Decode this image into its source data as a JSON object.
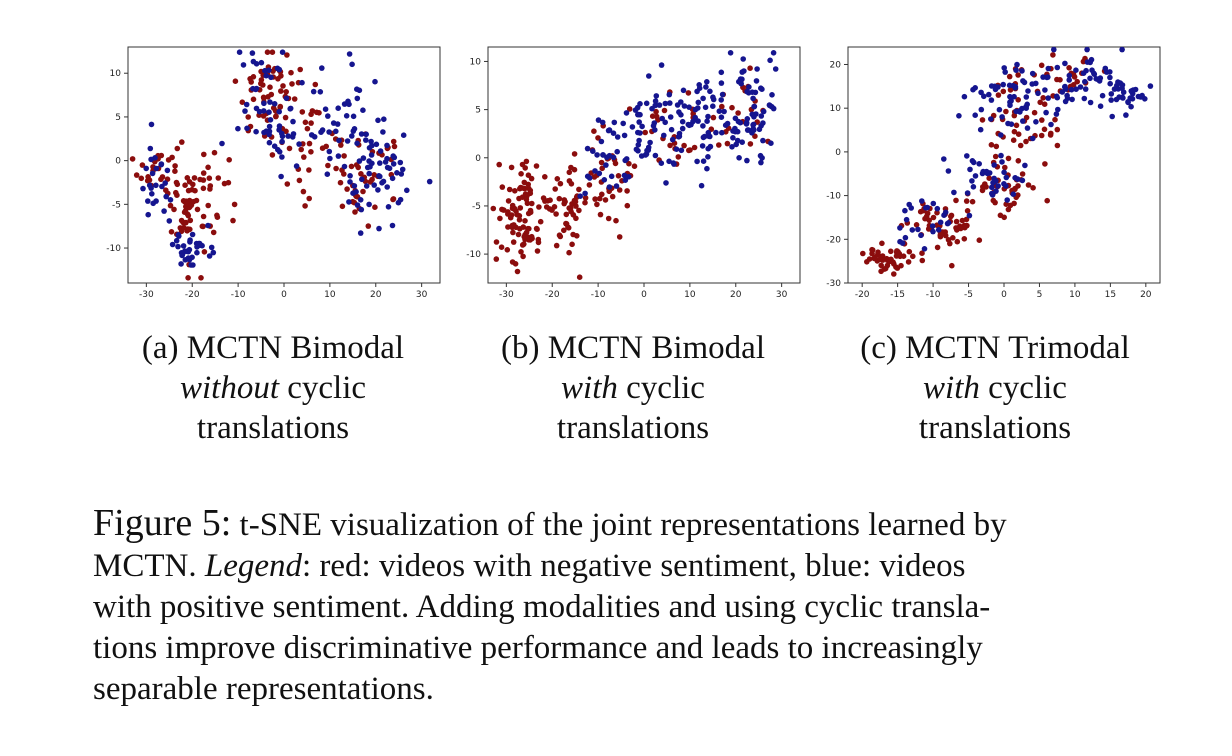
{
  "colors": {
    "negative": "#8b0d0d",
    "positive": "#15158f"
  },
  "chart_data": [
    {
      "type": "scatter",
      "xlim": [
        -34,
        34
      ],
      "ylim": [
        -14,
        13
      ],
      "xticks": [
        "-30",
        "-20",
        "-10",
        "0",
        "10",
        "20",
        "30"
      ],
      "yticks": [
        "10",
        "5",
        "0",
        "-5",
        "-10"
      ],
      "xtick_values": [
        -30,
        -20,
        -10,
        0,
        10,
        20,
        30
      ],
      "ytick_values": [
        10,
        5,
        0,
        -5,
        -10
      ],
      "series": [
        {
          "color": "#8b0d0d",
          "clusters": [
            {
              "cx": -27,
              "cy": -1,
              "sx": 3,
              "sy": 2.5,
              "n": 30
            },
            {
              "cx": -21,
              "cy": -6,
              "sx": 2.5,
              "sy": 3.5,
              "n": 40
            },
            {
              "cx": -17,
              "cy": -3,
              "sx": 3,
              "sy": 3,
              "n": 30
            },
            {
              "cx": -4,
              "cy": 8,
              "sx": 4,
              "sy": 3,
              "n": 50
            },
            {
              "cx": 4,
              "cy": 3,
              "sx": 5,
              "sy": 4,
              "n": 40
            },
            {
              "cx": 18,
              "cy": -2,
              "sx": 6,
              "sy": 3,
              "n": 45
            }
          ]
        },
        {
          "color": "#15158f",
          "clusters": [
            {
              "cx": -28,
              "cy": -3,
              "sx": 2,
              "sy": 3,
              "n": 25
            },
            {
              "cx": -20,
              "cy": -10,
              "sx": 2.5,
              "sy": 1.5,
              "n": 35
            },
            {
              "cx": -2,
              "cy": 6,
              "sx": 5,
              "sy": 4,
              "n": 60
            },
            {
              "cx": 13,
              "cy": 4,
              "sx": 5,
              "sy": 4,
              "n": 40
            },
            {
              "cx": 21,
              "cy": -2,
              "sx": 5,
              "sy": 3.5,
              "n": 55
            }
          ]
        }
      ]
    },
    {
      "type": "scatter",
      "xlim": [
        -34,
        34
      ],
      "ylim": [
        -13,
        11.5
      ],
      "xticks": [
        "-30",
        "-20",
        "-10",
        "0",
        "10",
        "20",
        "30"
      ],
      "yticks": [
        "10",
        "5",
        "0",
        "-5",
        "-10"
      ],
      "xtick_values": [
        -30,
        -20,
        -10,
        0,
        10,
        20,
        30
      ],
      "ytick_values": [
        10,
        5,
        0,
        -5,
        -10
      ],
      "series": [
        {
          "color": "#8b0d0d",
          "clusters": [
            {
              "cx": -27,
              "cy": -6,
              "sx": 3,
              "sy": 3,
              "n": 80
            },
            {
              "cx": -18,
              "cy": -5,
              "sx": 4,
              "sy": 3,
              "n": 60
            },
            {
              "cx": -8,
              "cy": -2,
              "sx": 5,
              "sy": 3,
              "n": 40
            },
            {
              "cx": 6,
              "cy": 3,
              "sx": 6,
              "sy": 3,
              "n": 30
            },
            {
              "cx": 20,
              "cy": 5,
              "sx": 5,
              "sy": 3,
              "n": 20
            }
          ]
        },
        {
          "color": "#15158f",
          "clusters": [
            {
              "cx": -10,
              "cy": -1,
              "sx": 4,
              "sy": 3,
              "n": 30
            },
            {
              "cx": 3,
              "cy": 3,
              "sx": 6,
              "sy": 3.5,
              "n": 70
            },
            {
              "cx": 16,
              "cy": 4,
              "sx": 6,
              "sy": 3,
              "n": 70
            },
            {
              "cx": 25,
              "cy": 5,
              "sx": 3,
              "sy": 3,
              "n": 40
            }
          ]
        }
      ]
    },
    {
      "type": "scatter",
      "xlim": [
        -22,
        22
      ],
      "ylim": [
        -30,
        24
      ],
      "xticks": [
        "-20",
        "-15",
        "-10",
        "-5",
        "0",
        "5",
        "10",
        "15",
        "20"
      ],
      "yticks": [
        "20",
        "10",
        "0",
        "-10",
        "-20",
        "-30"
      ],
      "xtick_values": [
        -20,
        -15,
        -10,
        -5,
        0,
        5,
        10,
        15,
        20
      ],
      "ytick_values": [
        20,
        10,
        0,
        -10,
        -20,
        -30
      ],
      "series": [
        {
          "color": "#8b0d0d",
          "clusters": [
            {
              "cx": -16,
              "cy": -24,
              "sx": 2.5,
              "sy": 2,
              "n": 50
            },
            {
              "cx": -8,
              "cy": -17,
              "sx": 3,
              "sy": 3.5,
              "n": 55
            },
            {
              "cx": 0,
              "cy": -8,
              "sx": 3,
              "sy": 4,
              "n": 40
            },
            {
              "cx": 3,
              "cy": 7,
              "sx": 4,
              "sy": 6,
              "n": 45
            },
            {
              "cx": 8,
              "cy": 18,
              "sx": 4,
              "sy": 3,
              "n": 25
            }
          ]
        },
        {
          "color": "#15158f",
          "clusters": [
            {
              "cx": -11,
              "cy": -16,
              "sx": 3,
              "sy": 4,
              "n": 25
            },
            {
              "cx": -2,
              "cy": -6,
              "sx": 3,
              "sy": 4,
              "n": 40
            },
            {
              "cx": 2,
              "cy": 12,
              "sx": 5,
              "sy": 5,
              "n": 60
            },
            {
              "cx": 11,
              "cy": 17,
              "sx": 4,
              "sy": 3.5,
              "n": 50
            },
            {
              "cx": 17,
              "cy": 13,
              "sx": 2.5,
              "sy": 2.5,
              "n": 30
            }
          ]
        }
      ]
    }
  ],
  "subcaptions": [
    {
      "line1": "(a)  MCTN Bimodal",
      "emph": "without",
      "line2_rest": " cyclic",
      "line3": "translations"
    },
    {
      "line1": "(b) MCTN Bimodal",
      "emph": "with",
      "line2_rest": " cyclic",
      "line3": "translations"
    },
    {
      "line1": "(c) MCTN Trimodal",
      "emph": "with",
      "line2_rest": " cyclic",
      "line3": "translations"
    }
  ],
  "caption": {
    "label": "Figure 5:",
    "l1": " t-SNE visualization of the joint representations learned by",
    "l2a": "MCTN. ",
    "l2_legend": "Legend",
    "l2b": ": red: videos with negative sentiment, blue: videos",
    "l3": "with positive sentiment. Adding modalities and using cyclic transla-",
    "l4": "tions improve discriminative performance and leads to increasingly",
    "l5": "separable representations."
  }
}
